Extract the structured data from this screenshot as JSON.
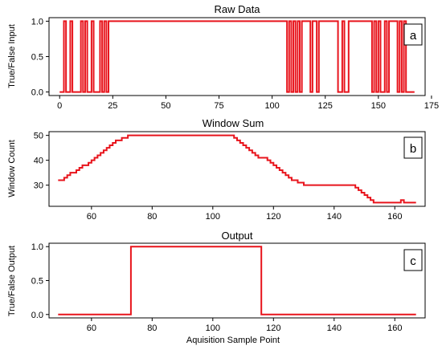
{
  "chart_data": [
    {
      "type": "line",
      "panel": "a",
      "title": "Raw Data",
      "ylabel": "True/False Input",
      "xlabel": "",
      "xlim": [
        -5,
        172
      ],
      "ylim": [
        -0.05,
        1.05
      ],
      "xticks": [
        0,
        25,
        50,
        75,
        100,
        125,
        150,
        175
      ],
      "yticks": [
        0.0,
        0.5,
        1.0
      ],
      "xticklabels": [
        "0",
        "25",
        "50",
        "75",
        "100",
        "125",
        "150",
        "175"
      ],
      "yticklabels": [
        "0.0",
        "0.5",
        "1.0"
      ],
      "color": "#e8141c",
      "step": true,
      "x": [
        0,
        2,
        3,
        5,
        6,
        10,
        11,
        12,
        13,
        15,
        16,
        19,
        20,
        21,
        22,
        23,
        24,
        107,
        108,
        109,
        110,
        111,
        112,
        113,
        114,
        118,
        119,
        121,
        122,
        126,
        131,
        133,
        134,
        136,
        147,
        148,
        149,
        150,
        151,
        153,
        154,
        155,
        159,
        160,
        161,
        162,
        163,
        167
      ],
      "values": [
        0,
        1,
        0,
        1,
        0,
        1,
        0,
        1,
        0,
        1,
        0,
        1,
        0,
        1,
        0,
        1,
        1,
        0,
        1,
        0,
        1,
        0,
        1,
        0,
        1,
        0,
        1,
        0,
        1,
        1,
        0,
        1,
        0,
        1,
        0,
        1,
        0,
        1,
        0,
        1,
        0,
        1,
        0,
        1,
        0,
        1,
        0,
        0
      ]
    },
    {
      "type": "line",
      "panel": "b",
      "title": "Window Sum",
      "ylabel": "Window Count",
      "xlabel": "",
      "xlim": [
        46,
        170
      ],
      "ylim": [
        21.5,
        51.5
      ],
      "xticks": [
        60,
        80,
        100,
        120,
        140,
        160
      ],
      "yticks": [
        30,
        40,
        50
      ],
      "xticklabels": [
        "60",
        "80",
        "100",
        "120",
        "140",
        "160"
      ],
      "yticklabels": [
        "30",
        "40",
        "50"
      ],
      "color": "#e8141c",
      "step": true,
      "x": [
        49,
        51,
        52,
        53,
        55,
        56,
        57,
        59,
        60,
        61,
        62,
        63,
        64,
        65,
        66,
        67,
        68,
        69,
        70,
        71,
        72,
        73,
        107,
        108,
        109,
        110,
        111,
        112,
        113,
        114,
        115,
        116,
        118,
        119,
        120,
        121,
        122,
        123,
        124,
        125,
        126,
        127,
        128,
        129,
        130,
        132,
        134,
        147,
        148,
        149,
        150,
        151,
        152,
        153,
        154,
        155,
        156,
        162,
        163,
        164,
        167
      ],
      "values": [
        32,
        33,
        34,
        35,
        36,
        37,
        38,
        39,
        40,
        41,
        42,
        43,
        44,
        45,
        46,
        47,
        48,
        48,
        49,
        49,
        50,
        50,
        49,
        48,
        47,
        46,
        45,
        44,
        43,
        42,
        41,
        41,
        40,
        39,
        38,
        37,
        36,
        35,
        34,
        33,
        32,
        32,
        31,
        31,
        30,
        30,
        30,
        29,
        28,
        27,
        26,
        25,
        24,
        23,
        23,
        23,
        23,
        24,
        23,
        23,
        23
      ]
    },
    {
      "type": "line",
      "panel": "c",
      "title": "Output",
      "ylabel": "True/False Output",
      "xlabel": "Aquisition Sample Point",
      "xlim": [
        46,
        170
      ],
      "ylim": [
        -0.05,
        1.05
      ],
      "xticks": [
        60,
        80,
        100,
        120,
        140,
        160
      ],
      "yticks": [
        0.0,
        0.5,
        1.0
      ],
      "xticklabels": [
        "60",
        "80",
        "100",
        "120",
        "140",
        "160"
      ],
      "yticklabels": [
        "0.0",
        "0.5",
        "1.0"
      ],
      "color": "#e8141c",
      "step": true,
      "x": [
        49,
        73,
        116,
        167
      ],
      "values": [
        0,
        1,
        0,
        0
      ]
    }
  ]
}
